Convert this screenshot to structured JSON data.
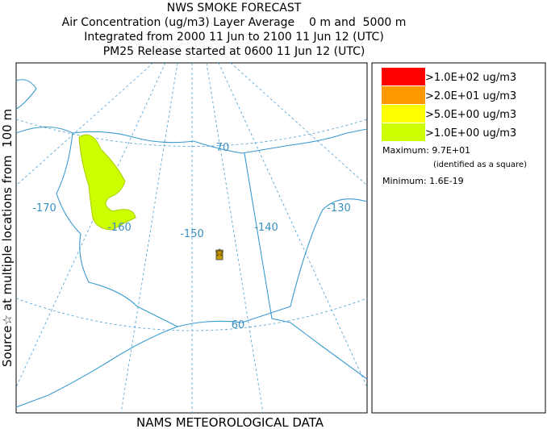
{
  "header": {
    "lines": [
      "NWS SMOKE FORECAST",
      "Air Concentration (ug/m3) Layer Average    0 m and  5000 m",
      "Integrated from 2000 11 Jun to 2100 11 Jun 12 (UTC)",
      "PM25 Release started at 0600 11 Jun 12 (UTC)"
    ]
  },
  "side_label": "Source☆ at multiple locations from  100 m",
  "footer": "NAMS METEOROLOGICAL DATA",
  "legend": {
    "items": [
      {
        "label": ">1.0E+02 ug/m3",
        "color": "#ff0000"
      },
      {
        "label": ">2.0E+01 ug/m3",
        "color": "#ff9900"
      },
      {
        "label": ">5.0E+00 ug/m3",
        "color": "#ffff00"
      },
      {
        "label": ">1.0E+00 ug/m3",
        "color": "#ccff00"
      }
    ],
    "maximum": "Maximum: 9.7E+01",
    "max_note": "(identified as a square)",
    "minimum": "Minimum: 1.6E-19"
  },
  "map": {
    "labels": [
      "-170",
      "-160",
      "-150",
      "-140",
      "-130",
      "70",
      "60"
    ]
  }
}
